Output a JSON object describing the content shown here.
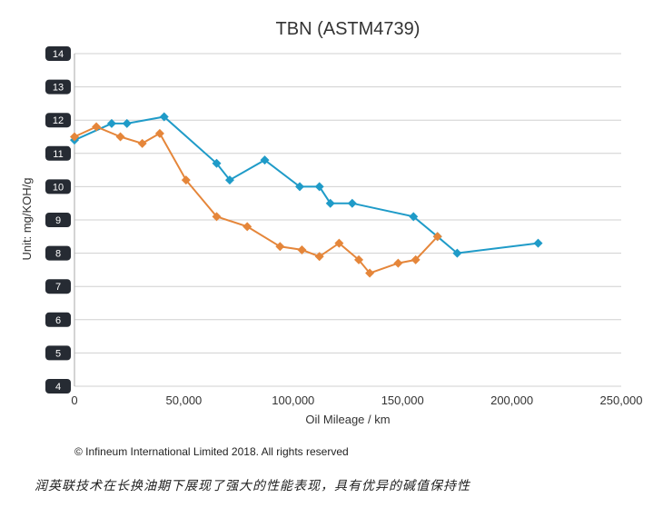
{
  "chart_data": {
    "type": "line",
    "title": "TBN (ASTM4739)",
    "xlabel": "Oil Mileage / km",
    "ylabel": "Unit: mg/KOH/g",
    "xlim": [
      0,
      250000
    ],
    "ylim": [
      4,
      14
    ],
    "x_ticks": [
      0,
      50000,
      100000,
      150000,
      200000,
      250000
    ],
    "x_tick_labels": [
      "0",
      "50,000",
      "100,000",
      "150,000",
      "200,000",
      "250,000"
    ],
    "y_ticks": [
      4,
      5,
      6,
      7,
      8,
      9,
      10,
      11,
      12,
      13,
      14
    ],
    "y_tick_labels": [
      "4",
      "5",
      "6",
      "7",
      "8",
      "9",
      "10",
      "11",
      "12",
      "13",
      "14"
    ],
    "grid": "horizontal",
    "legend": "none",
    "series": [
      {
        "color": "#1f9bc8",
        "marker": "diamond",
        "x": [
          0,
          17000,
          24000,
          41000,
          65000,
          71000,
          87000,
          103000,
          112000,
          117000,
          127000,
          155000,
          166000,
          175000,
          212000
        ],
        "y": [
          11.4,
          11.9,
          11.9,
          12.1,
          10.7,
          10.2,
          10.8,
          10.0,
          10.0,
          9.5,
          9.5,
          9.1,
          8.5,
          8.0,
          8.3
        ]
      },
      {
        "color": "#e5863a",
        "marker": "diamond",
        "x": [
          0,
          10000,
          21000,
          31000,
          39000,
          51000,
          65000,
          79000,
          94000,
          104000,
          112000,
          121000,
          130000,
          135000,
          148000,
          156000,
          166000
        ],
        "y": [
          11.5,
          11.8,
          11.5,
          11.3,
          11.6,
          10.2,
          9.1,
          8.8,
          8.2,
          8.1,
          7.9,
          8.3,
          7.8,
          7.4,
          7.7,
          7.8,
          8.5
        ]
      }
    ]
  },
  "copyright": "© Infineum International Limited 2018. All rights reserved",
  "caption": "润英联技术在长换油期下展现了强大的性能表现，具有优异的碱值保持性"
}
